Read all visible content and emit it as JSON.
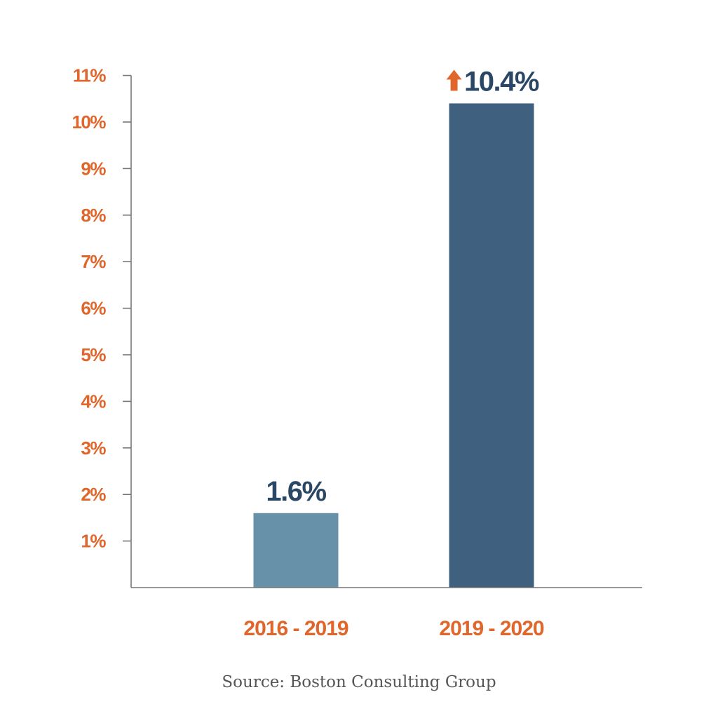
{
  "chart_data": {
    "type": "bar",
    "categories": [
      "2016 - 2019",
      "2019 - 2020"
    ],
    "values": [
      1.6,
      10.4
    ],
    "value_labels": [
      "1.6%",
      "10.4%"
    ],
    "yticks": [
      1,
      2,
      3,
      4,
      5,
      6,
      7,
      8,
      9,
      10,
      11
    ],
    "ytick_labels": [
      "1%",
      "2%",
      "3%",
      "4%",
      "5%",
      "6%",
      "7%",
      "8%",
      "9%",
      "10%",
      "11%"
    ],
    "ylim": [
      0,
      11
    ],
    "grid": false,
    "legend": "none",
    "annotations": [
      {
        "category": "2019 - 2020",
        "icon": "up-arrow-icon"
      }
    ]
  },
  "source": "Source: Boston Consulting Group",
  "colors": {
    "accent": "#e0662b",
    "bar_1": "#6791a8",
    "bar_2": "#40607f",
    "value_text": "#2b4766",
    "axis": "#777777"
  }
}
